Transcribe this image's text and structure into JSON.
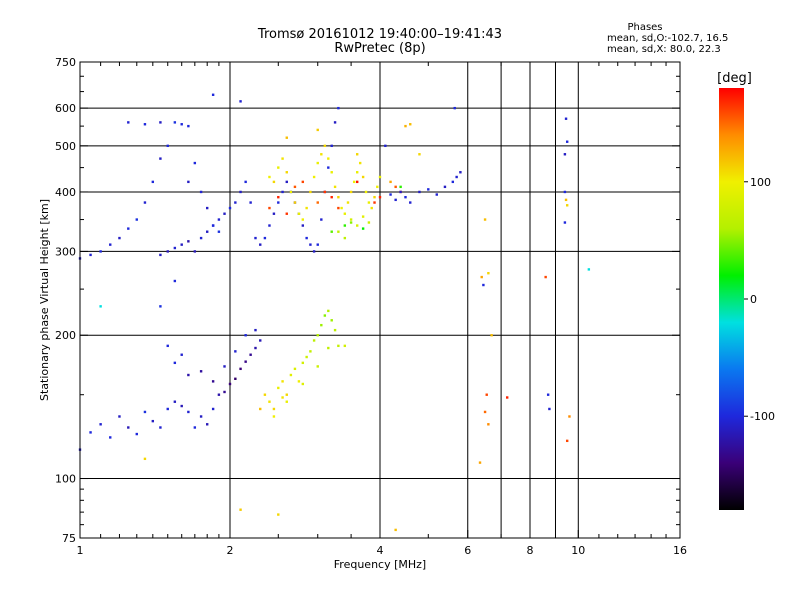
{
  "header": {
    "title": "Tromsø 20161012 19:40:00–19:41:43",
    "subtitle": "RwPretec (8p)",
    "stats_title": "Phases",
    "stats_line1": "mean, sd,O:-102.7, 16.5",
    "stats_line2": "mean, sd,X: 80.0, 22.3"
  },
  "colorbar": {
    "label": "[deg]",
    "tick_labels": [
      "100",
      "0",
      "-100"
    ],
    "tick_values": [
      100,
      0,
      -100
    ],
    "range": [
      -180,
      180
    ],
    "colors": [
      "#000000",
      "#3a0078",
      "#1e28dc",
      "#0a78f0",
      "#00e0e0",
      "#00f000",
      "#b4f000",
      "#f0f000",
      "#ff8c00",
      "#ff0000"
    ]
  },
  "chart_data": {
    "type": "scatter",
    "title": "Tromsø 20161012 19:40:00–19:41:43",
    "subtitle": "RwPretec (8p)",
    "xlabel": "Frequency [MHz]",
    "ylabel": "Stationary phase Virtual Height [km]",
    "x_scale": "log",
    "y_scale": "log",
    "xlim": [
      1,
      16
    ],
    "ylim": [
      75,
      750
    ],
    "x_ticks": [
      1,
      2,
      4,
      6,
      8,
      10,
      16
    ],
    "x_gridlines": [
      2,
      4,
      6,
      7,
      8,
      9,
      10
    ],
    "y_ticks": [
      75,
      100,
      200,
      300,
      400,
      500,
      600,
      750
    ],
    "grid": true,
    "color_quantity": "phase [deg]",
    "series": [
      {
        "values": [
          [
            1.0,
            115,
            -110
          ],
          [
            1.05,
            125,
            -100
          ],
          [
            1.1,
            130,
            -105
          ],
          [
            1.15,
            122,
            -100
          ],
          [
            1.2,
            135,
            -110
          ],
          [
            1.25,
            128,
            -115
          ],
          [
            1.3,
            124,
            -100
          ],
          [
            1.35,
            138,
            -95
          ],
          [
            1.4,
            132,
            -110
          ],
          [
            1.45,
            128,
            -105
          ],
          [
            1.5,
            140,
            -100
          ],
          [
            1.55,
            145,
            -110
          ],
          [
            1.6,
            142,
            -115
          ],
          [
            1.65,
            138,
            -105
          ],
          [
            1.7,
            128,
            -100
          ],
          [
            1.75,
            135,
            -110
          ],
          [
            1.8,
            130,
            -115
          ],
          [
            1.85,
            140,
            -105
          ],
          [
            1.9,
            150,
            -120
          ],
          [
            1.95,
            152,
            -130
          ],
          [
            2.0,
            158,
            -140
          ],
          [
            2.05,
            162,
            -145
          ],
          [
            2.1,
            170,
            -140
          ],
          [
            2.15,
            176,
            -135
          ],
          [
            2.2,
            182,
            -130
          ],
          [
            2.25,
            188,
            -120
          ],
          [
            2.3,
            195,
            -115
          ],
          [
            1.65,
            165,
            -120
          ],
          [
            1.75,
            168,
            -125
          ],
          [
            1.85,
            160,
            -130
          ],
          [
            1.95,
            172,
            -110
          ],
          [
            2.05,
            185,
            -105
          ],
          [
            2.15,
            200,
            -100
          ],
          [
            2.25,
            205,
            -110
          ],
          [
            1.55,
            175,
            -100
          ],
          [
            1.6,
            182,
            -105
          ],
          [
            1.5,
            190,
            -100
          ],
          [
            1.45,
            230,
            -95
          ],
          [
            1.55,
            260,
            -100
          ],
          [
            1.35,
            110,
            110
          ],
          [
            1.1,
            230,
            -20
          ]
        ]
      },
      {
        "values": [
          [
            2.3,
            140,
            120
          ],
          [
            2.35,
            150,
            110
          ],
          [
            2.4,
            145,
            105
          ],
          [
            2.45,
            135,
            100
          ],
          [
            2.5,
            155,
            95
          ],
          [
            2.55,
            160,
            105
          ],
          [
            2.6,
            150,
            110
          ],
          [
            2.65,
            165,
            90
          ],
          [
            2.7,
            170,
            85
          ],
          [
            2.75,
            160,
            100
          ],
          [
            2.8,
            175,
            80
          ],
          [
            2.85,
            180,
            75
          ],
          [
            2.9,
            185,
            70
          ],
          [
            2.95,
            195,
            65
          ],
          [
            3.0,
            200,
            60
          ],
          [
            3.05,
            210,
            55
          ],
          [
            3.1,
            220,
            50
          ],
          [
            3.15,
            225,
            60
          ],
          [
            3.2,
            215,
            55
          ],
          [
            3.25,
            205,
            65
          ],
          [
            3.3,
            190,
            70
          ],
          [
            2.6,
            145,
            95
          ],
          [
            2.8,
            158,
            88
          ],
          [
            3.0,
            172,
            75
          ],
          [
            3.15,
            188,
            68
          ],
          [
            2.45,
            140,
            110
          ],
          [
            2.55,
            148,
            105
          ],
          [
            3.4,
            190,
            80
          ]
        ]
      },
      {
        "values": [
          [
            1.0,
            290,
            -110
          ],
          [
            1.05,
            295,
            -105
          ],
          [
            1.1,
            300,
            -100
          ],
          [
            1.15,
            310,
            -105
          ],
          [
            1.2,
            320,
            -110
          ],
          [
            1.25,
            335,
            -100
          ],
          [
            1.3,
            350,
            -95
          ],
          [
            1.35,
            380,
            -105
          ],
          [
            1.4,
            420,
            -100
          ],
          [
            1.45,
            470,
            -110
          ],
          [
            1.5,
            500,
            -100
          ],
          [
            1.55,
            560,
            -95
          ],
          [
            1.6,
            555,
            -100
          ],
          [
            1.45,
            295,
            -110
          ],
          [
            1.5,
            300,
            -115
          ],
          [
            1.55,
            305,
            -105
          ],
          [
            1.6,
            310,
            -110
          ],
          [
            1.65,
            315,
            -120
          ],
          [
            1.7,
            300,
            -115
          ],
          [
            1.75,
            320,
            -105
          ],
          [
            1.8,
            330,
            -110
          ],
          [
            1.85,
            340,
            -100
          ],
          [
            1.9,
            350,
            -105
          ],
          [
            1.95,
            360,
            -110
          ],
          [
            2.0,
            370,
            -100
          ],
          [
            2.05,
            380,
            -105
          ],
          [
            2.1,
            400,
            -110
          ],
          [
            2.15,
            420,
            -100
          ],
          [
            2.2,
            380,
            -105
          ],
          [
            1.65,
            420,
            -110
          ],
          [
            1.7,
            460,
            -100
          ],
          [
            1.75,
            400,
            -105
          ],
          [
            1.8,
            370,
            -110
          ],
          [
            1.85,
            340,
            -100
          ],
          [
            1.9,
            330,
            -95
          ],
          [
            2.25,
            320,
            -105
          ],
          [
            2.3,
            310,
            -110
          ],
          [
            2.35,
            320,
            -100
          ],
          [
            2.4,
            340,
            -105
          ],
          [
            2.45,
            360,
            -110
          ],
          [
            2.5,
            380,
            -100
          ],
          [
            2.55,
            400,
            -105
          ],
          [
            2.6,
            420,
            -110
          ],
          [
            2.65,
            400,
            -100
          ],
          [
            2.7,
            380,
            -95
          ],
          [
            2.75,
            360,
            -105
          ],
          [
            2.8,
            340,
            -110
          ],
          [
            2.85,
            320,
            -100
          ],
          [
            2.9,
            310,
            -105
          ],
          [
            2.95,
            300,
            -110
          ],
          [
            3.0,
            310,
            -100
          ],
          [
            3.05,
            350,
            -105
          ],
          [
            3.1,
            400,
            -110
          ],
          [
            3.15,
            450,
            -100
          ],
          [
            3.2,
            500,
            -105
          ],
          [
            3.25,
            560,
            -110
          ],
          [
            3.3,
            600,
            -100
          ],
          [
            1.85,
            640,
            -100
          ],
          [
            2.1,
            620,
            -105
          ],
          [
            1.45,
            560,
            -110
          ],
          [
            1.65,
            550,
            -100
          ],
          [
            1.25,
            560,
            -105
          ],
          [
            1.35,
            555,
            -100
          ]
        ]
      },
      {
        "values": [
          [
            2.4,
            430,
            100
          ],
          [
            2.45,
            420,
            110
          ],
          [
            2.5,
            450,
            95
          ],
          [
            2.55,
            470,
            105
          ],
          [
            2.6,
            440,
            110
          ],
          [
            2.65,
            400,
            100
          ],
          [
            2.7,
            380,
            115
          ],
          [
            2.75,
            360,
            95
          ],
          [
            2.8,
            350,
            100
          ],
          [
            2.85,
            370,
            105
          ],
          [
            2.9,
            400,
            110
          ],
          [
            2.95,
            430,
            100
          ],
          [
            3.0,
            460,
            95
          ],
          [
            3.05,
            480,
            105
          ],
          [
            3.1,
            500,
            110
          ],
          [
            3.15,
            470,
            100
          ],
          [
            3.2,
            440,
            95
          ],
          [
            3.25,
            410,
            105
          ],
          [
            3.3,
            390,
            110
          ],
          [
            3.35,
            370,
            100
          ],
          [
            3.4,
            360,
            95
          ],
          [
            3.45,
            380,
            105
          ],
          [
            3.5,
            400,
            110
          ],
          [
            3.55,
            420,
            100
          ],
          [
            3.6,
            440,
            95
          ],
          [
            3.65,
            460,
            105
          ],
          [
            3.7,
            430,
            110
          ],
          [
            3.75,
            400,
            100
          ],
          [
            3.8,
            380,
            95
          ],
          [
            3.85,
            370,
            105
          ],
          [
            3.9,
            390,
            110
          ],
          [
            3.95,
            410,
            100
          ],
          [
            4.0,
            430,
            95
          ],
          [
            3.5,
            350,
            80
          ],
          [
            3.6,
            340,
            85
          ],
          [
            3.7,
            355,
            90
          ],
          [
            3.8,
            345,
            75
          ],
          [
            3.3,
            330,
            70
          ],
          [
            3.4,
            320,
            65
          ],
          [
            2.6,
            520,
            120
          ],
          [
            3.0,
            540,
            115
          ],
          [
            3.6,
            480,
            110
          ],
          [
            4.5,
            550,
            125
          ],
          [
            4.6,
            555,
            120
          ],
          [
            4.8,
            480,
            110
          ],
          [
            4.2,
            420,
            130
          ]
        ]
      },
      {
        "values": [
          [
            2.4,
            370,
            160
          ],
          [
            2.5,
            390,
            170
          ],
          [
            2.6,
            360,
            165
          ],
          [
            2.7,
            410,
            155
          ],
          [
            2.8,
            420,
            160
          ],
          [
            3.0,
            380,
            150
          ],
          [
            3.1,
            400,
            165
          ],
          [
            3.2,
            390,
            170
          ],
          [
            3.3,
            370,
            160
          ],
          [
            3.6,
            420,
            175
          ],
          [
            3.9,
            380,
            165
          ],
          [
            4.0,
            390,
            170
          ],
          [
            4.3,
            410,
            155
          ],
          [
            4.4,
            400,
            160
          ]
        ]
      },
      {
        "values": [
          [
            3.2,
            330,
            40
          ],
          [
            3.4,
            340,
            30
          ],
          [
            3.5,
            345,
            50
          ],
          [
            3.7,
            335,
            20
          ],
          [
            4.4,
            410,
            30
          ]
        ]
      },
      {
        "values": [
          [
            4.2,
            395,
            -100
          ],
          [
            4.3,
            385,
            -105
          ],
          [
            4.4,
            400,
            -110
          ],
          [
            4.5,
            390,
            -100
          ],
          [
            4.6,
            380,
            -105
          ],
          [
            4.8,
            400,
            -110
          ],
          [
            5.0,
            405,
            -100
          ],
          [
            5.2,
            395,
            -105
          ],
          [
            5.4,
            410,
            -110
          ],
          [
            5.6,
            420,
            -100
          ],
          [
            5.7,
            430,
            -105
          ],
          [
            5.8,
            440,
            -110
          ],
          [
            5.65,
            600,
            -100
          ],
          [
            4.1,
            500,
            -105
          ]
        ]
      },
      {
        "values": [
          [
            6.4,
            265,
            130
          ],
          [
            6.5,
            350,
            120
          ],
          [
            6.6,
            270,
            110
          ],
          [
            6.45,
            255,
            -100
          ],
          [
            6.7,
            200,
            120
          ],
          [
            6.6,
            130,
            140
          ],
          [
            6.55,
            150,
            160
          ],
          [
            6.5,
            138,
            150
          ],
          [
            6.35,
            108,
            130
          ],
          [
            7.2,
            148,
            170
          ],
          [
            8.6,
            265,
            160
          ],
          [
            8.7,
            150,
            -100
          ],
          [
            8.75,
            140,
            -105
          ],
          [
            9.4,
            345,
            -100
          ],
          [
            9.45,
            385,
            120
          ],
          [
            9.5,
            375,
            110
          ],
          [
            9.4,
            400,
            -100
          ],
          [
            9.45,
            570,
            -105
          ],
          [
            9.5,
            510,
            -100
          ],
          [
            9.4,
            480,
            -110
          ],
          [
            9.6,
            135,
            140
          ],
          [
            9.5,
            120,
            160
          ],
          [
            10.5,
            275,
            -20
          ],
          [
            4.3,
            78,
            120
          ],
          [
            2.5,
            84,
            110
          ],
          [
            2.1,
            86,
            115
          ]
        ]
      }
    ]
  }
}
